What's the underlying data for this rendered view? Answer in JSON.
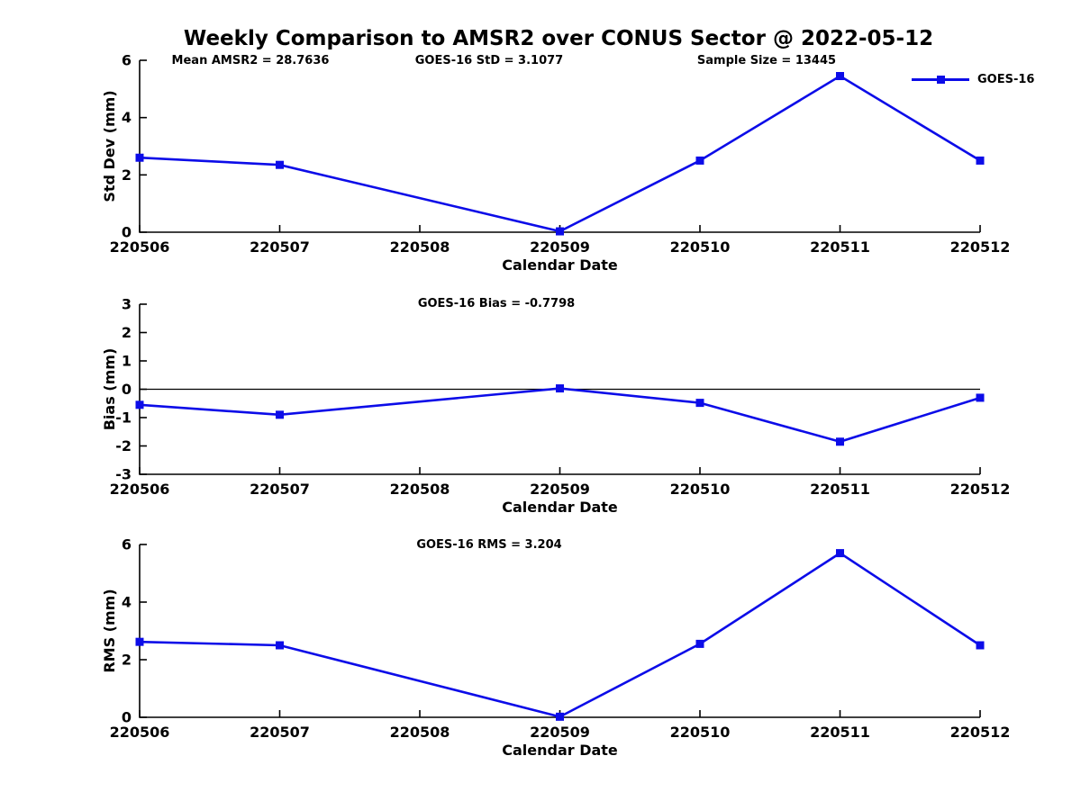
{
  "figure": {
    "title": "Weekly Comparison to AMSR2 over CONUS Sector @ 2022-05-12",
    "colors": {
      "line": "#0C0CE8",
      "axis": "#000000",
      "background": "#FFFFFF"
    },
    "legend": {
      "label": "GOES-16",
      "marker": "filled-square",
      "position": "top-right"
    }
  },
  "annotations": {
    "mean_amsr2": "Mean AMSR2 = 28.7636",
    "goes16_std": "GOES-16 StD = 3.1077",
    "sample_size": "Sample Size = 13445",
    "goes16_bias": "GOES-16 Bias  = -0.7798",
    "goes16_rms": "GOES-16 RMS = 3.204"
  },
  "chart_data": [
    {
      "type": "line",
      "title": "",
      "ylabel": "Std Dev (mm)",
      "xlabel": "Calendar Date",
      "x_tick_labels": [
        "220506",
        "220507",
        "220508",
        "220509",
        "220510",
        "220511",
        "220512"
      ],
      "y_ticks": [
        0,
        2,
        4,
        6
      ],
      "ylim": [
        0,
        6
      ],
      "zero_line": false,
      "legend_entry": "GOES-16",
      "series": [
        {
          "name": "GOES-16",
          "x": [
            "220506",
            "220507",
            "220509",
            "220510",
            "220511",
            "220512"
          ],
          "x_index": [
            0,
            1,
            3,
            4,
            5,
            6
          ],
          "values": [
            2.6,
            2.35,
            0.03,
            2.5,
            5.45,
            2.5
          ]
        }
      ]
    },
    {
      "type": "line",
      "title": "",
      "ylabel": "Bias (mm)",
      "xlabel": "Calendar Date",
      "x_tick_labels": [
        "220506",
        "220507",
        "220508",
        "220509",
        "220510",
        "220511",
        "220512"
      ],
      "y_ticks": [
        -3,
        -2,
        -1,
        0,
        1,
        2,
        3
      ],
      "ylim": [
        -3,
        3
      ],
      "zero_line": true,
      "legend_entry": "GOES-16",
      "series": [
        {
          "name": "GOES-16",
          "x": [
            "220506",
            "220507",
            "220509",
            "220510",
            "220511",
            "220512"
          ],
          "x_index": [
            0,
            1,
            3,
            4,
            5,
            6
          ],
          "values": [
            -0.55,
            -0.9,
            0.03,
            -0.48,
            -1.85,
            -0.3
          ]
        }
      ]
    },
    {
      "type": "line",
      "title": "",
      "ylabel": "RMS (mm)",
      "xlabel": "Calendar Date",
      "x_tick_labels": [
        "220506",
        "220507",
        "220508",
        "220509",
        "220510",
        "220511",
        "220512"
      ],
      "y_ticks": [
        0,
        2,
        4,
        6
      ],
      "ylim": [
        0,
        6
      ],
      "zero_line": false,
      "legend_entry": "GOES-16",
      "series": [
        {
          "name": "GOES-16",
          "x": [
            "220506",
            "220507",
            "220509",
            "220510",
            "220511",
            "220512"
          ],
          "x_index": [
            0,
            1,
            3,
            4,
            5,
            6
          ],
          "values": [
            2.62,
            2.5,
            0.02,
            2.55,
            5.7,
            2.5
          ]
        }
      ]
    }
  ]
}
